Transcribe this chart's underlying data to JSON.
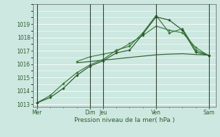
{
  "bg_color": "#cce8e0",
  "grid_color": "#ffffff",
  "line_color_dark": "#2d5a2d",
  "line_color_mid": "#3a7a3a",
  "xlabel": "Pression niveau de la mer( hPa )",
  "ylim": [
    1012.8,
    1020.5
  ],
  "yticks": [
    1013,
    1014,
    1015,
    1016,
    1017,
    1018,
    1019
  ],
  "vline_positions": [
    0.0,
    4.0,
    5.0,
    9.0,
    13.0
  ],
  "xtick_labels_shown": [
    "Mer",
    "Dim",
    "Jeu",
    "Ven",
    "Sam"
  ],
  "xtick_label_positions": [
    0.0,
    4.0,
    5.0,
    9.0,
    13.0
  ],
  "n_points": 14,
  "series1_x": [
    0,
    1,
    2,
    3,
    4,
    5,
    6,
    7,
    8,
    9,
    10,
    11,
    12,
    13
  ],
  "series1_y": [
    1013.1,
    1013.5,
    1014.2,
    1015.15,
    1015.85,
    1016.25,
    1016.85,
    1017.05,
    1018.25,
    1019.55,
    1019.3,
    1018.55,
    1016.9,
    1016.65
  ],
  "series2_x": [
    0,
    1,
    2,
    3,
    4,
    5,
    6,
    7,
    8,
    9,
    10,
    11,
    12,
    13
  ],
  "series2_y": [
    1013.1,
    1013.65,
    1014.55,
    1015.35,
    1015.95,
    1016.35,
    1017.05,
    1017.35,
    1018.35,
    1019.65,
    1018.35,
    1018.65,
    1017.05,
    1016.65
  ],
  "series3_x": [
    3,
    4,
    5,
    6,
    7,
    8,
    9,
    10,
    11,
    12,
    13
  ],
  "series3_y": [
    1016.1,
    1016.2,
    1016.3,
    1016.4,
    1016.5,
    1016.6,
    1016.7,
    1016.75,
    1016.78,
    1016.72,
    1016.68
  ],
  "series4_x": [
    3,
    4,
    5,
    6,
    7,
    8,
    9,
    10,
    11,
    12,
    13
  ],
  "series4_y": [
    1016.2,
    1016.55,
    1016.75,
    1016.95,
    1017.55,
    1018.15,
    1018.85,
    1018.55,
    1018.35,
    1017.25,
    1016.62
  ]
}
